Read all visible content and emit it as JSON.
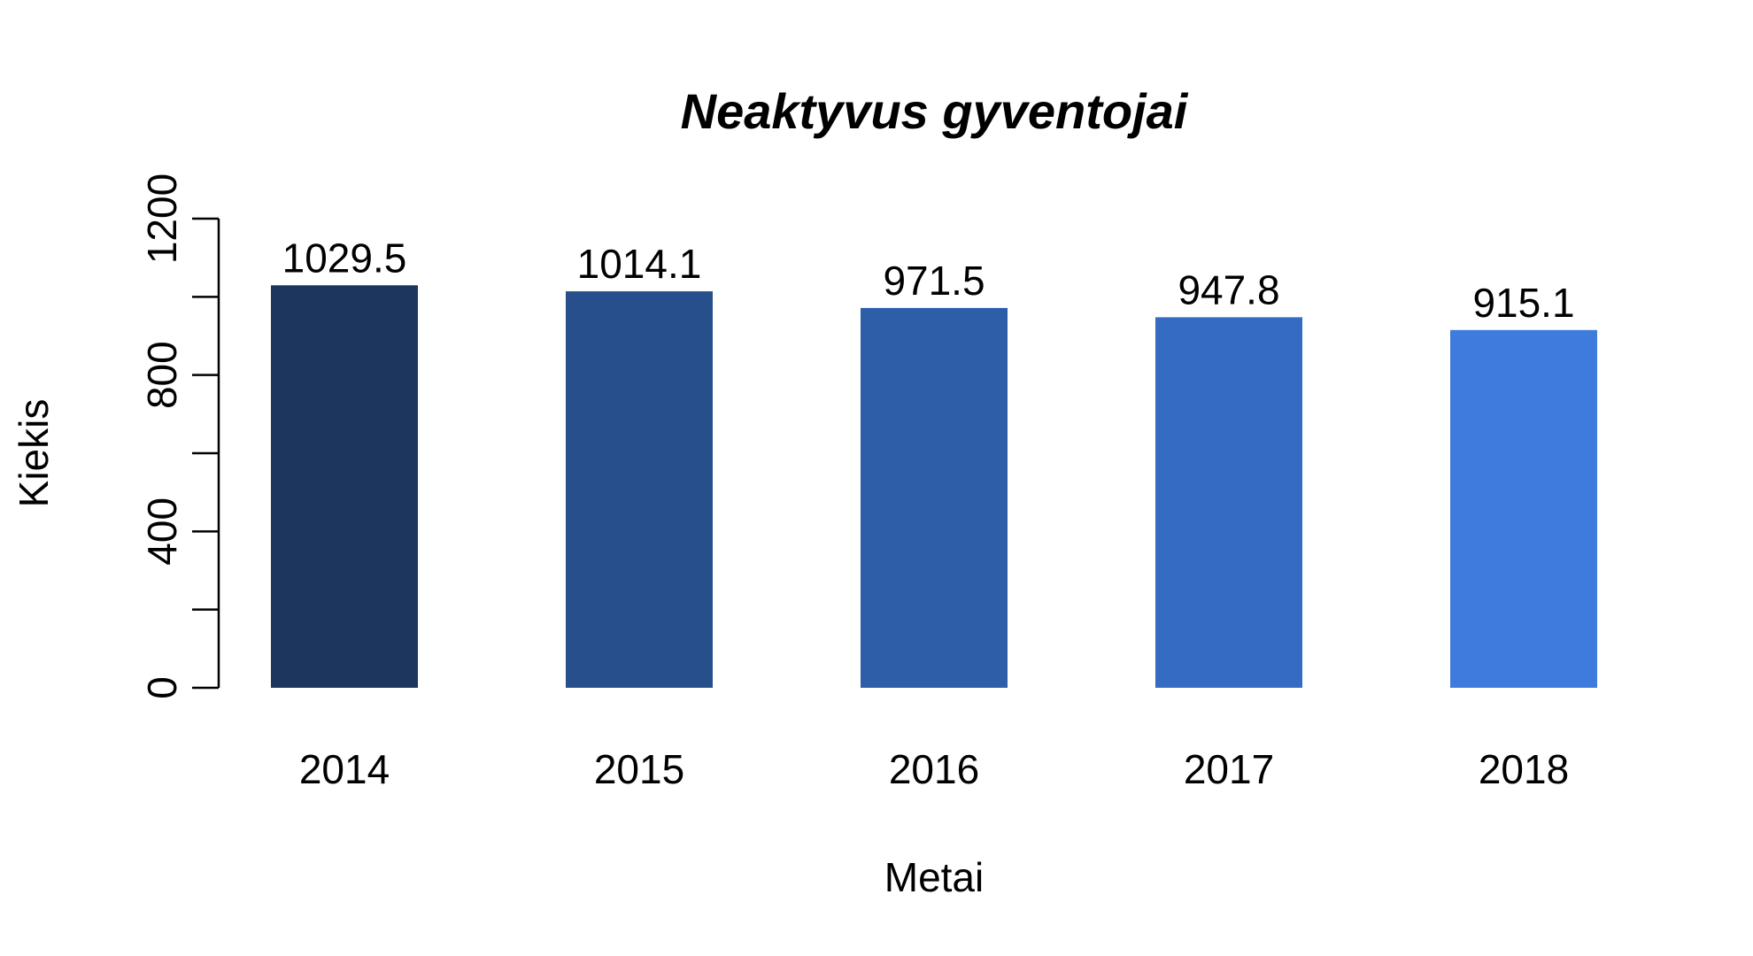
{
  "chart_data": {
    "type": "bar",
    "title": "Neaktyvus gyventojai",
    "xlabel": "Metai",
    "ylabel": "Kiekis",
    "categories": [
      "2014",
      "2015",
      "2016",
      "2017",
      "2018"
    ],
    "values": [
      1029.5,
      1014.1,
      971.5,
      947.8,
      915.1
    ],
    "value_labels": [
      "1029.5",
      "1014.1",
      "971.5",
      "947.8",
      "915.1"
    ],
    "ylim": [
      0,
      1200
    ],
    "y_ticks": [
      0,
      200,
      400,
      600,
      800,
      1000,
      1200
    ],
    "y_tick_labels": [
      "0",
      "",
      "400",
      "",
      "800",
      "",
      "1200"
    ],
    "colors": [
      "#1d365e",
      "#264f8c",
      "#2e5ea8",
      "#356bc2",
      "#3e7bdc"
    ],
    "grid": false,
    "legend": "none"
  }
}
